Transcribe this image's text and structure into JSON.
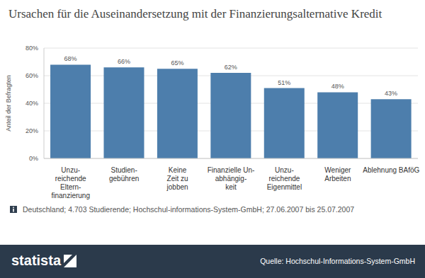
{
  "chart_data": {
    "type": "bar",
    "title": "Ursachen für die Auseinandersetzung mit der Finanzierungsalternative Kredit",
    "y_label": "Anteil der Befragten",
    "categories": [
      "Unzu-\nreichende\nEltern-\nfinanzierung",
      "Studien-\ngebühren",
      "Keine\nZeit zu\njobben",
      "Finanzielle Un-\nabhängig-\nkeit",
      "Unzu-\nreichende\nEigenmittel",
      "Weniger\nArbeiten",
      "Ablehnung BAföG"
    ],
    "values": [
      68,
      66,
      65,
      62,
      51,
      48,
      43
    ],
    "value_labels": [
      "68%",
      "66%",
      "65%",
      "62%",
      "51%",
      "48%",
      "43%"
    ],
    "data_labels": true,
    "color": "#4d7eac",
    "ylim": [
      0,
      80
    ],
    "yticks": [
      {
        "value": 0,
        "label": "0%"
      },
      {
        "value": 20,
        "label": "20%"
      },
      {
        "value": 40,
        "label": "40%"
      },
      {
        "value": 60,
        "label": "60%"
      },
      {
        "value": 80,
        "label": "80%"
      }
    ],
    "grid": true
  },
  "note": "Deutschland; 4.703 Studierende; Hochschul-informations-System-GmbH; 27.06.2007 bis 25.07.2007",
  "brand": "statista",
  "source": "Quelle: Hochschul-Informations-System-GmbH"
}
